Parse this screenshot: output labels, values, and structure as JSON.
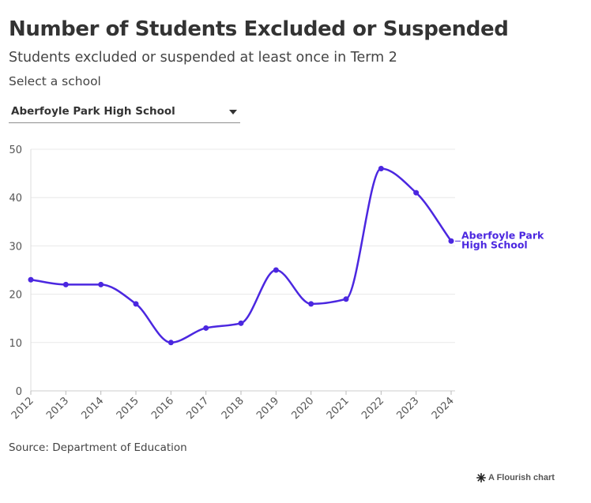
{
  "header": {
    "title": "Number of Students Excluded or Suspended",
    "subtitle": "Students excluded or suspended at least once in Term 2",
    "select_label": "Select a school"
  },
  "dropdown": {
    "selected": "Aberfoyle Park High School"
  },
  "chart_data": {
    "type": "line",
    "title": "Number of Students Excluded or Suspended",
    "subtitle": "Students excluded or suspended at least once in Term 2",
    "xlabel": "",
    "ylabel": "",
    "x": [
      "2012",
      "2013",
      "2014",
      "2015",
      "2016",
      "2017",
      "2018",
      "2019",
      "2020",
      "2021",
      "2022",
      "2023",
      "2024"
    ],
    "series": [
      {
        "name": "Aberfoyle Park High School",
        "label_lines": [
          "Aberfoyle Park",
          "High School"
        ],
        "color": "#4b27e0",
        "values": [
          23,
          22,
          22,
          18,
          10,
          13,
          14,
          25,
          18,
          19,
          46,
          41,
          31
        ]
      }
    ],
    "ylim": [
      0,
      50
    ],
    "yticks": [
      0,
      10,
      20,
      30,
      40,
      50
    ],
    "grid": true,
    "legend": "end-of-line label"
  },
  "footer": {
    "source": "Source: Department of Education",
    "credit": "A Flourish chart"
  }
}
